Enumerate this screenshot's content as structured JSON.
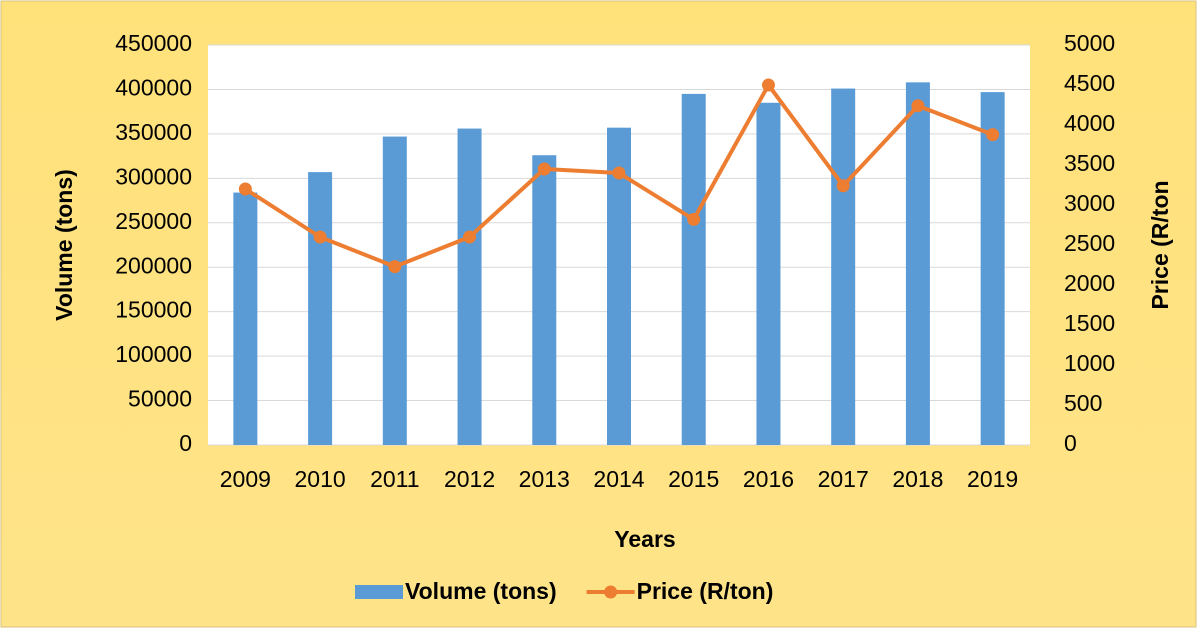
{
  "chart_data": {
    "type": "bar_line",
    "x_label": "Years",
    "y_label": "Volume (tons)",
    "y2_label": "Price (R/ton",
    "categories": [
      "2009",
      "2010",
      "2011",
      "2012",
      "2013",
      "2014",
      "2015",
      "2016",
      "2017",
      "2018",
      "2019"
    ],
    "series": [
      {
        "name": "Volume (tons)",
        "type": "bar",
        "color": "#5b9bd5",
        "axis": "y",
        "values": [
          284000,
          307000,
          347000,
          356000,
          326000,
          357000,
          395000,
          385000,
          401000,
          408000,
          397000
        ]
      },
      {
        "name": "Price (R/ton)",
        "type": "line",
        "color": "#ed7d31",
        "axis": "y2",
        "values": [
          3200,
          2600,
          2230,
          2600,
          3450,
          3400,
          2820,
          4500,
          3240,
          4240,
          3880
        ]
      }
    ],
    "ylim": [
      0,
      450000
    ],
    "yticks": [
      0,
      50000,
      100000,
      150000,
      200000,
      250000,
      300000,
      350000,
      400000,
      450000
    ],
    "y2lim": [
      0,
      5000
    ],
    "y2ticks": [
      0,
      500,
      1000,
      1500,
      2000,
      2500,
      3000,
      3500,
      4000,
      4500,
      5000
    ],
    "grid": true,
    "legend": "bottom"
  }
}
